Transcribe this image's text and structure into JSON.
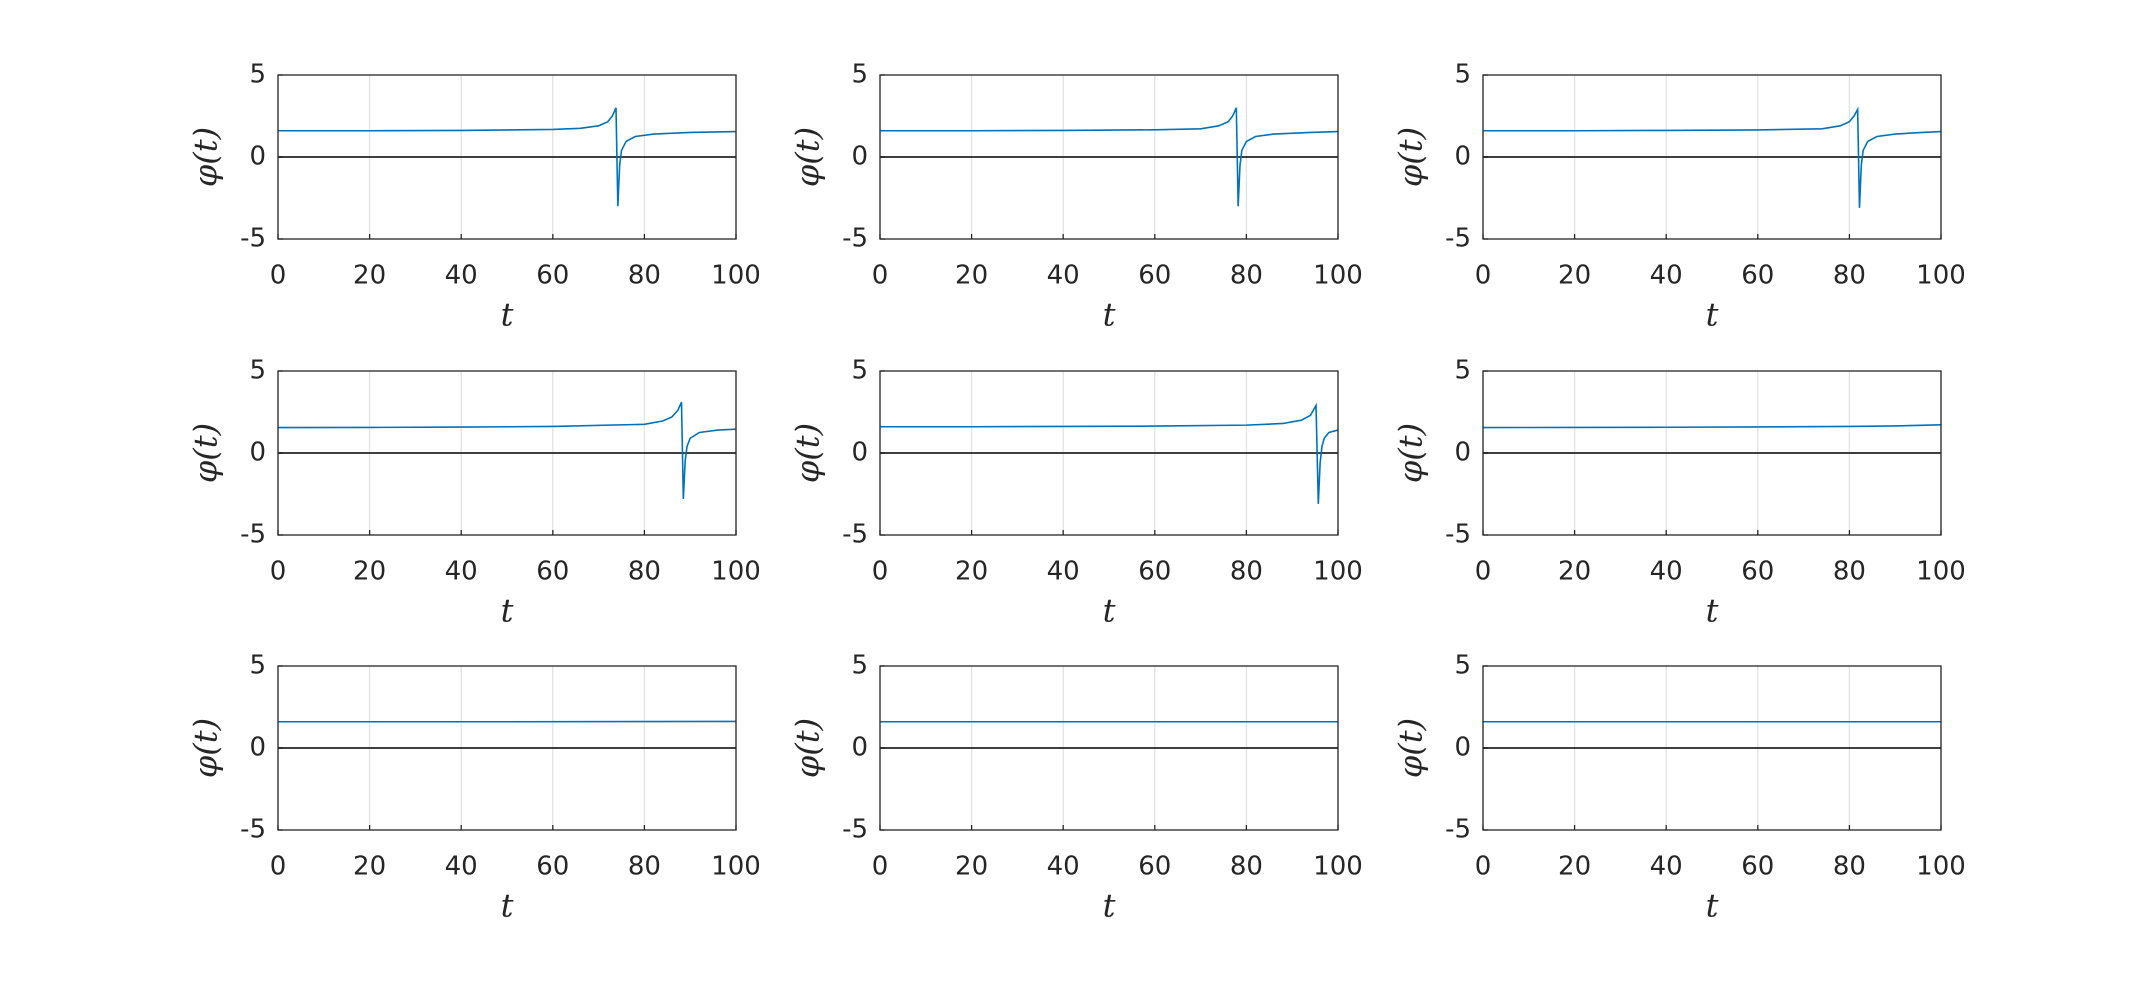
{
  "chart_data": [
    {
      "type": "line",
      "xlabel": "t",
      "ylabel": "φ(t)",
      "xlim": [
        0,
        100
      ],
      "ylim": [
        -5,
        5
      ],
      "xticks": [
        0,
        20,
        40,
        60,
        80,
        100
      ],
      "yticks": [
        -5,
        0,
        5
      ],
      "xgrid": true,
      "zero_line": true,
      "color": "#0072bd",
      "x": [
        0,
        20,
        40,
        60,
        66,
        70,
        72,
        73,
        73.8,
        74.2,
        74.6,
        75,
        76,
        78,
        82,
        90,
        100
      ],
      "values": [
        1.6,
        1.6,
        1.62,
        1.68,
        1.75,
        1.9,
        2.15,
        2.5,
        3.0,
        -3.0,
        -0.5,
        0.4,
        0.95,
        1.25,
        1.4,
        1.5,
        1.55
      ]
    },
    {
      "type": "line",
      "xlabel": "t",
      "ylabel": "φ(t)",
      "xlim": [
        0,
        100
      ],
      "ylim": [
        -5,
        5
      ],
      "xticks": [
        0,
        20,
        40,
        60,
        80,
        100
      ],
      "yticks": [
        -5,
        0,
        5
      ],
      "xgrid": true,
      "zero_line": true,
      "color": "#0072bd",
      "x": [
        0,
        20,
        40,
        60,
        70,
        74,
        76,
        77,
        77.8,
        78.2,
        78.6,
        79,
        80,
        82,
        86,
        94,
        100
      ],
      "values": [
        1.6,
        1.6,
        1.62,
        1.66,
        1.72,
        1.9,
        2.15,
        2.5,
        3.0,
        -3.0,
        -0.5,
        0.4,
        0.95,
        1.25,
        1.4,
        1.5,
        1.55
      ]
    },
    {
      "type": "line",
      "xlabel": "t",
      "ylabel": "φ(t)",
      "xlim": [
        0,
        100
      ],
      "ylim": [
        -5,
        5
      ],
      "xticks": [
        0,
        20,
        40,
        60,
        80,
        100
      ],
      "yticks": [
        -5,
        0,
        5
      ],
      "xgrid": true,
      "zero_line": true,
      "color": "#0072bd",
      "x": [
        0,
        20,
        40,
        60,
        74,
        78,
        80,
        81,
        81.8,
        82.2,
        82.6,
        83,
        84,
        86,
        90,
        96,
        100
      ],
      "values": [
        1.6,
        1.6,
        1.62,
        1.65,
        1.72,
        1.9,
        2.15,
        2.5,
        2.9,
        -3.1,
        -0.5,
        0.4,
        0.95,
        1.25,
        1.4,
        1.5,
        1.55
      ]
    },
    {
      "type": "line",
      "xlabel": "t",
      "ylabel": "φ(t)",
      "xlim": [
        0,
        100
      ],
      "ylim": [
        -5,
        5
      ],
      "xticks": [
        0,
        20,
        40,
        60,
        80,
        100
      ],
      "yticks": [
        -5,
        0,
        5
      ],
      "xgrid": true,
      "zero_line": true,
      "color": "#0072bd",
      "x": [
        0,
        20,
        40,
        60,
        80,
        84,
        86,
        87.3,
        88.1,
        88.5,
        88.9,
        89.3,
        90,
        92,
        96,
        100
      ],
      "values": [
        1.55,
        1.56,
        1.58,
        1.62,
        1.75,
        1.95,
        2.2,
        2.6,
        3.1,
        -2.8,
        -0.5,
        0.4,
        0.9,
        1.25,
        1.4,
        1.45
      ]
    },
    {
      "type": "line",
      "xlabel": "t",
      "ylabel": "φ(t)",
      "xlim": [
        0,
        100
      ],
      "ylim": [
        -5,
        5
      ],
      "xticks": [
        0,
        20,
        40,
        60,
        80,
        100
      ],
      "yticks": [
        -5,
        0,
        5
      ],
      "xgrid": true,
      "zero_line": true,
      "color": "#0072bd",
      "x": [
        0,
        20,
        40,
        60,
        80,
        88,
        92,
        94,
        95.2,
        95.7,
        96.1,
        96.5,
        97,
        98,
        100
      ],
      "values": [
        1.6,
        1.6,
        1.62,
        1.64,
        1.7,
        1.8,
        2.0,
        2.3,
        2.9,
        -3.1,
        -0.6,
        0.4,
        0.9,
        1.25,
        1.4
      ]
    },
    {
      "type": "line",
      "xlabel": "t",
      "ylabel": "φ(t)",
      "xlim": [
        0,
        100
      ],
      "ylim": [
        -5,
        5
      ],
      "xticks": [
        0,
        20,
        40,
        60,
        80,
        100
      ],
      "yticks": [
        -5,
        0,
        5
      ],
      "xgrid": true,
      "zero_line": true,
      "color": "#0072bd",
      "x": [
        0,
        20,
        40,
        60,
        80,
        90,
        100
      ],
      "values": [
        1.55,
        1.56,
        1.57,
        1.59,
        1.62,
        1.65,
        1.72
      ]
    },
    {
      "type": "line",
      "xlabel": "t",
      "ylabel": "φ(t)",
      "xlim": [
        0,
        100
      ],
      "ylim": [
        -5,
        5
      ],
      "xticks": [
        0,
        20,
        40,
        60,
        80,
        100
      ],
      "yticks": [
        -5,
        0,
        5
      ],
      "xgrid": true,
      "zero_line": true,
      "color": "#0072bd",
      "x": [
        0,
        50,
        100
      ],
      "values": [
        1.6,
        1.6,
        1.62
      ]
    },
    {
      "type": "line",
      "xlabel": "t",
      "ylabel": "φ(t)",
      "xlim": [
        0,
        100
      ],
      "ylim": [
        -5,
        5
      ],
      "xticks": [
        0,
        20,
        40,
        60,
        80,
        100
      ],
      "yticks": [
        -5,
        0,
        5
      ],
      "xgrid": true,
      "zero_line": true,
      "color": "#0072bd",
      "x": [
        0,
        50,
        100
      ],
      "values": [
        1.6,
        1.6,
        1.6
      ]
    },
    {
      "type": "line",
      "xlabel": "t",
      "ylabel": "φ(t)",
      "xlim": [
        0,
        100
      ],
      "ylim": [
        -5,
        5
      ],
      "xticks": [
        0,
        20,
        40,
        60,
        80,
        100
      ],
      "yticks": [
        -5,
        0,
        5
      ],
      "xgrid": true,
      "zero_line": true,
      "color": "#0072bd",
      "x": [
        0,
        50,
        100
      ],
      "values": [
        1.6,
        1.6,
        1.6
      ]
    }
  ]
}
